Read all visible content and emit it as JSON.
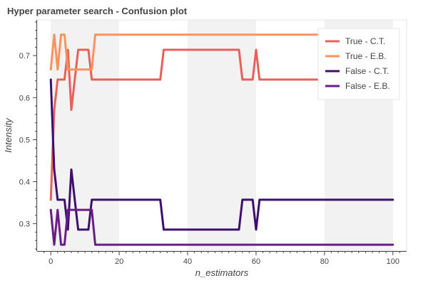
{
  "chart_data": {
    "type": "line",
    "title": "Hyper parameter search - Confusion plot",
    "xlabel": "n_estimators",
    "ylabel": "Intensity",
    "xlim": [
      -4,
      104
    ],
    "ylim": [
      0.235,
      0.785
    ],
    "xticks": [
      0,
      20,
      40,
      60,
      80,
      100
    ],
    "yticks": [
      0.3,
      0.4,
      0.5,
      0.6,
      0.7
    ],
    "ytick_labels": [
      "0.3",
      "0.4",
      "0.5",
      "0.6",
      "0.7"
    ],
    "shaded_bands": [
      [
        0,
        20
      ],
      [
        40,
        60
      ],
      [
        80,
        100
      ]
    ],
    "legend_position": "top-right",
    "series": [
      {
        "name": "True - C.T.",
        "color": "#e8605a",
        "x": [
          0,
          1,
          2,
          3,
          4,
          5,
          6,
          7,
          8,
          9,
          10,
          11,
          12,
          32,
          33,
          55,
          56,
          59,
          60,
          61,
          78
        ],
        "y": [
          0.357,
          0.571,
          0.643,
          0.643,
          0.643,
          0.714,
          0.571,
          0.643,
          0.714,
          0.714,
          0.714,
          0.714,
          0.643,
          0.643,
          0.714,
          0.714,
          0.643,
          0.643,
          0.714,
          0.643,
          0.643
        ]
      },
      {
        "name": "True - E.B.",
        "color": "#f9935e",
        "x": [
          0,
          1,
          2,
          3,
          4,
          5,
          6,
          7,
          8,
          9,
          10,
          11,
          12,
          13,
          78
        ],
        "y": [
          0.667,
          0.75,
          0.667,
          0.75,
          0.75,
          0.667,
          0.667,
          0.667,
          0.667,
          0.667,
          0.667,
          0.667,
          0.667,
          0.75,
          0.75
        ]
      },
      {
        "name": "False - C.T.",
        "color": "#3d0f6e",
        "x": [
          0,
          1,
          2,
          3,
          4,
          5,
          6,
          7,
          8,
          9,
          10,
          11,
          12,
          32,
          33,
          55,
          56,
          59,
          60,
          61,
          100
        ],
        "y": [
          0.643,
          0.429,
          0.357,
          0.357,
          0.357,
          0.286,
          0.429,
          0.357,
          0.286,
          0.286,
          0.286,
          0.286,
          0.357,
          0.357,
          0.286,
          0.286,
          0.357,
          0.357,
          0.286,
          0.357,
          0.357
        ]
      },
      {
        "name": "False - E.B.",
        "color": "#6a1d86",
        "x": [
          0,
          1,
          2,
          3,
          4,
          5,
          6,
          7,
          8,
          9,
          10,
          11,
          12,
          13,
          100
        ],
        "y": [
          0.333,
          0.25,
          0.333,
          0.25,
          0.25,
          0.333,
          0.333,
          0.333,
          0.333,
          0.333,
          0.333,
          0.333,
          0.333,
          0.25,
          0.25
        ]
      }
    ]
  }
}
